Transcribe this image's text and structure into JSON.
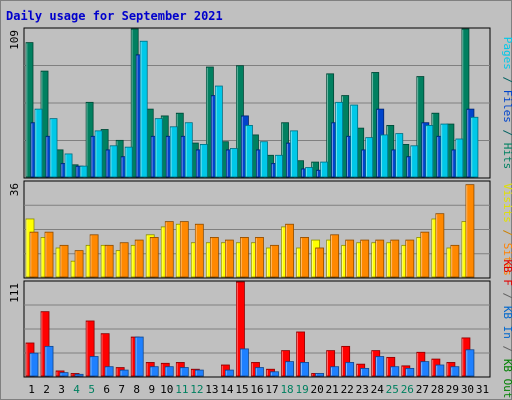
{
  "chart_data": [
    {
      "type": "bar",
      "title": "Daily usage for September 2021",
      "categories": [
        "1",
        "2",
        "3",
        "4",
        "5",
        "6",
        "7",
        "8",
        "9",
        "10",
        "11",
        "12",
        "13",
        "14",
        "15",
        "16",
        "17",
        "18",
        "19",
        "20",
        "21",
        "22",
        "23",
        "24",
        "25",
        "26",
        "27",
        "28",
        "29",
        "30",
        "31"
      ],
      "weekend_days": [
        "4",
        "5",
        "11",
        "12",
        "18",
        "19",
        "25",
        "26"
      ],
      "ylim": [
        0,
        109
      ],
      "y_tick_label": "109",
      "side_label_parts": [
        {
          "text": "Pages",
          "color": "#00c8e8"
        },
        {
          "text": " / ",
          "color": "#006060"
        },
        {
          "text": "Files",
          "color": "#0044cc"
        },
        {
          "text": " / ",
          "color": "#006060"
        },
        {
          "text": "Hits",
          "color": "#008060"
        }
      ],
      "series": [
        {
          "name": "Hits",
          "color": "#008060",
          "values": [
            99,
            78,
            20,
            9,
            55,
            35,
            27,
            109,
            50,
            45,
            47,
            25,
            81,
            26,
            82,
            31,
            16,
            40,
            12,
            11,
            76,
            60,
            36,
            77,
            38,
            24,
            74,
            47,
            39,
            109,
            0
          ]
        },
        {
          "name": "Files",
          "color": "#0044cc",
          "values": [
            40,
            30,
            10,
            8,
            30,
            20,
            15,
            90,
            30,
            30,
            30,
            20,
            60,
            20,
            45,
            20,
            10,
            25,
            6,
            5,
            40,
            30,
            20,
            50,
            20,
            15,
            40,
            30,
            20,
            50,
            0
          ]
        },
        {
          "name": "Pages",
          "color": "#00c8e8",
          "values": [
            50,
            43,
            17,
            8,
            34,
            23,
            22,
            100,
            43,
            37,
            40,
            24,
            67,
            21,
            38,
            26,
            16,
            34,
            7,
            11,
            55,
            53,
            29,
            31,
            32,
            23,
            38,
            39,
            28,
            44,
            0
          ]
        }
      ]
    },
    {
      "type": "bar",
      "ylim": [
        0,
        36
      ],
      "y_tick_label": "36",
      "side_label_parts": [
        {
          "text": "Visits",
          "color": "#e0e000"
        },
        {
          "text": " / ",
          "color": "#cc8000"
        },
        {
          "text": "Sites",
          "color": "#ff8000"
        }
      ],
      "series": [
        {
          "name": "Visits",
          "color": "#ffff00",
          "values": [
            22,
            15,
            11,
            6,
            12,
            12,
            10,
            12,
            16,
            19,
            20,
            13,
            13,
            13,
            13,
            13,
            11,
            19,
            11,
            14,
            14,
            12,
            13,
            13,
            13,
            12,
            15,
            22,
            11,
            21,
            0
          ]
        },
        {
          "name": "Sites",
          "color": "#ff8800",
          "values": [
            17,
            17,
            12,
            10,
            16,
            12,
            13,
            14,
            15,
            21,
            21,
            20,
            15,
            14,
            15,
            15,
            12,
            20,
            15,
            11,
            16,
            14,
            14,
            14,
            14,
            14,
            17,
            24,
            12,
            35,
            0
          ]
        }
      ]
    },
    {
      "type": "bar",
      "ylim": [
        0,
        111
      ],
      "y_tick_label": "111",
      "side_label_parts": [
        {
          "text": "KB F",
          "color": "#e00000"
        },
        {
          "text": " / ",
          "color": "#606060"
        },
        {
          "text": "KB In",
          "color": "#0066cc"
        },
        {
          "text": " / ",
          "color": "#606060"
        },
        {
          "text": "KB Out",
          "color": "#008000"
        }
      ],
      "series": [
        {
          "name": "KB F",
          "color": "#ff0000",
          "values": [
            39,
            76,
            6,
            3,
            65,
            50,
            10,
            46,
            16,
            15,
            16,
            8,
            0,
            13,
            111,
            16,
            8,
            30,
            52,
            3,
            30,
            35,
            14,
            30,
            22,
            12,
            28,
            20,
            16,
            45,
            0
          ]
        },
        {
          "name": "KB In",
          "color": "#1e80ff",
          "values": [
            27,
            35,
            4,
            2,
            23,
            11,
            7,
            46,
            11,
            11,
            10,
            7,
            0,
            7,
            32,
            10,
            5,
            17,
            16,
            3,
            11,
            16,
            9,
            23,
            11,
            9,
            17,
            13,
            11,
            31,
            0
          ]
        }
      ]
    }
  ]
}
